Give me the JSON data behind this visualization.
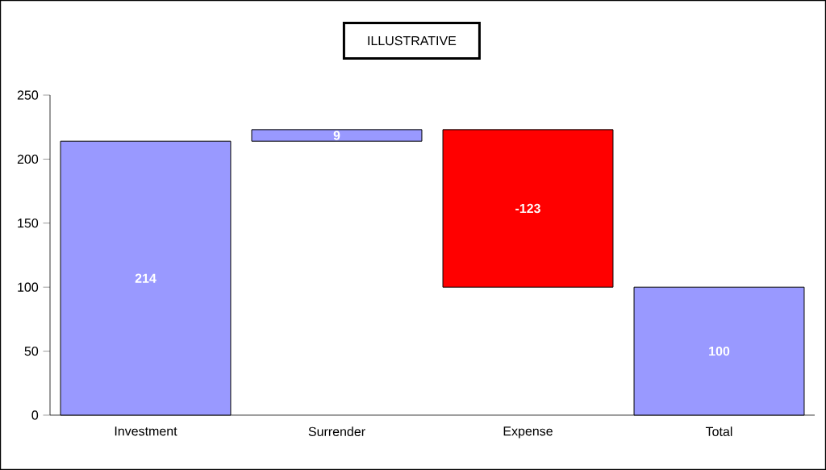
{
  "chart_data": {
    "type": "bar",
    "categories": [
      "Investment",
      "Surrender",
      "Expense",
      "Total"
    ],
    "values": [
      214,
      9,
      -123,
      100
    ],
    "base": [
      0,
      214,
      223,
      0
    ],
    "colors": [
      "#9999ff",
      "#9999ff",
      "#ff0000",
      "#9999ff"
    ],
    "value_labels": [
      "214",
      "9",
      "-123",
      "100"
    ],
    "ylim": [
      0,
      250
    ],
    "yticks": [
      0,
      50,
      100,
      150,
      200,
      250
    ],
    "annotations": [
      "ILLUSTRATIVE"
    ]
  }
}
